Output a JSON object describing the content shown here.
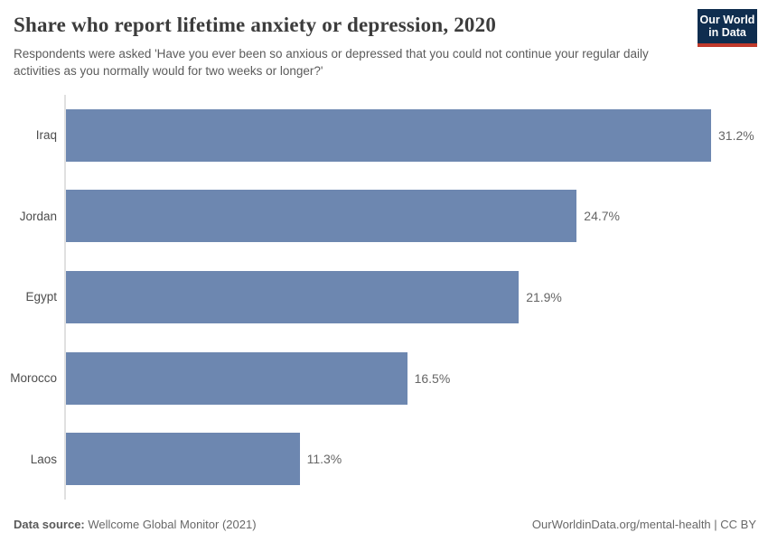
{
  "header": {
    "title": "Share who report lifetime anxiety or depression, 2020",
    "subtitle": "Respondents were asked 'Have you ever been so anxious or depressed that you could not continue your regular daily activities as you normally would for two weeks or longer?'",
    "logo": {
      "line1": "Our World",
      "line2": "in Data",
      "bg_color": "#0f2d4f",
      "accent_color": "#c0392b"
    }
  },
  "chart_data": {
    "type": "bar",
    "orientation": "horizontal",
    "title": "Share who report lifetime anxiety or depression, 2020",
    "categories": [
      "Iraq",
      "Jordan",
      "Egypt",
      "Morocco",
      "Laos"
    ],
    "values": [
      31.2,
      24.7,
      21.9,
      16.5,
      11.3
    ],
    "value_labels": [
      "31.2%",
      "24.7%",
      "21.9%",
      "16.5%",
      "11.3%"
    ],
    "unit": "%",
    "xlabel": "",
    "ylabel": "",
    "xlim": [
      0,
      33
    ],
    "grid": false,
    "legend": false,
    "bar_color": "#6d87b0",
    "axis_line_color": "#e0e0e0"
  },
  "footer": {
    "source_label": "Data source:",
    "source_value": "Wellcome Global Monitor (2021)",
    "credit": "OurWorldinData.org/mental-health | CC BY"
  }
}
